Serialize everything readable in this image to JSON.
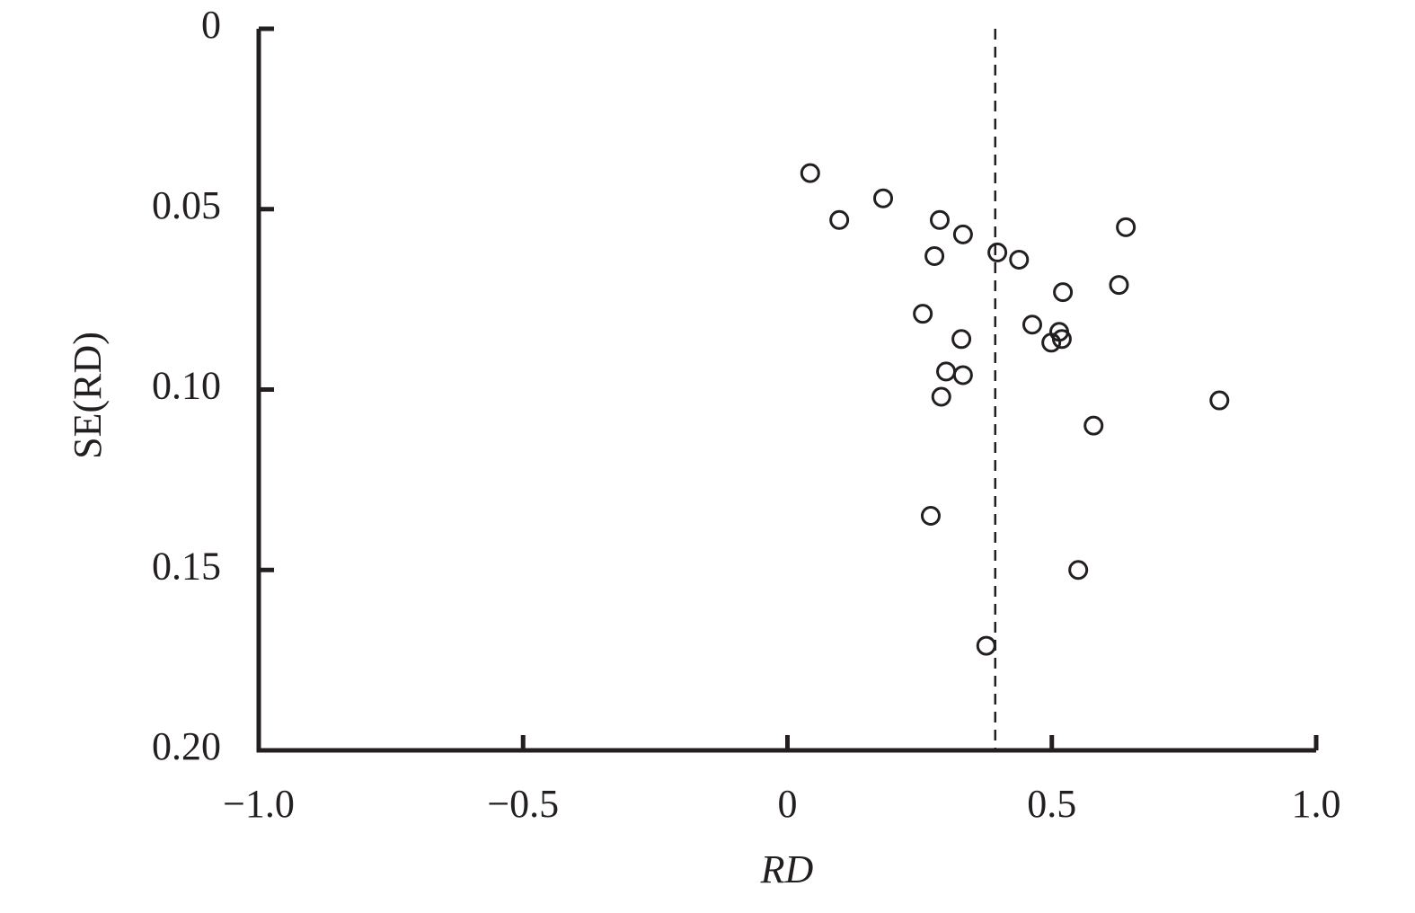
{
  "chart_data": {
    "type": "scatter",
    "xlabel": "RD",
    "ylabel": "SE(RD)",
    "x": [
      0.043,
      0.098,
      0.181,
      0.288,
      0.332,
      0.64,
      0.397,
      0.438,
      0.278,
      0.521,
      0.627,
      0.256,
      0.463,
      0.329,
      0.514,
      0.519,
      0.499,
      0.3,
      0.332,
      0.291,
      0.817,
      0.579,
      0.271,
      0.55,
      0.376
    ],
    "values": [
      0.04,
      0.053,
      0.047,
      0.053,
      0.057,
      0.055,
      0.062,
      0.064,
      0.063,
      0.073,
      0.071,
      0.079,
      0.082,
      0.086,
      0.084,
      0.086,
      0.087,
      0.095,
      0.096,
      0.102,
      0.103,
      0.11,
      0.135,
      0.15,
      0.171
    ],
    "color": "#231f20",
    "reference_line": 0.393,
    "xlim": [
      -1,
      1
    ],
    "xticks": [
      {
        "value": -1,
        "label": "−1.0"
      },
      {
        "value": -0.5,
        "label": "−0.5"
      },
      0,
      0.5,
      {
        "value": 1,
        "label": "1.0"
      }
    ],
    "ylim": [
      0,
      0.2
    ],
    "y_inverted": true,
    "yticks": [
      0,
      0.05,
      {
        "value": 0.1,
        "label": "0.10"
      },
      0.15,
      {
        "value": 0.2,
        "label": "0.20"
      }
    ]
  }
}
